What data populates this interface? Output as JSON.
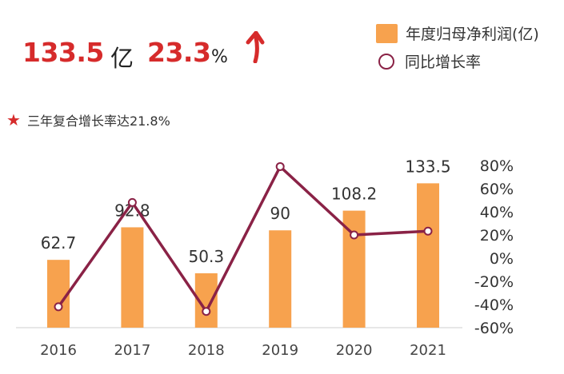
{
  "headline": {
    "profit_value": "133.5",
    "profit_unit": "亿",
    "growth_value": "23.3",
    "growth_unit": "%",
    "trend_icon": "up-arrow-icon"
  },
  "legend": {
    "bar_label": "年度归母净利润(亿)",
    "line_label": "同比增长率"
  },
  "cagr": {
    "icon": "star-icon",
    "text": "三年复合增长率达21.8%"
  },
  "colors": {
    "bar": "#f7a24e",
    "line": "#8a2246",
    "accent_red": "#d62b2b",
    "axis_text": "#444444"
  },
  "chart_data": {
    "type": "bar",
    "categories": [
      "2016",
      "2017",
      "2018",
      "2019",
      "2020",
      "2021"
    ],
    "series": [
      {
        "type": "bar",
        "values": [
          62.7,
          92.8,
          50.3,
          90,
          108.2,
          133.5
        ],
        "data_labels": [
          "62.7",
          "92.8",
          "50.3",
          "90",
          "108.2",
          "133.5"
        ]
      },
      {
        "type": "line",
        "axis": "right",
        "values": [
          -42,
          48,
          -46,
          79,
          20,
          23.3
        ]
      }
    ],
    "y_right": {
      "ylim": [
        -60,
        80
      ],
      "ticks": [
        "80%",
        "60%",
        "40%",
        "20%",
        "0%",
        "-20%",
        "-40%",
        "-60%"
      ],
      "tick_values": [
        80,
        60,
        40,
        20,
        0,
        -20,
        -40,
        -60
      ]
    },
    "grid": false,
    "legend_position": "top-right"
  }
}
